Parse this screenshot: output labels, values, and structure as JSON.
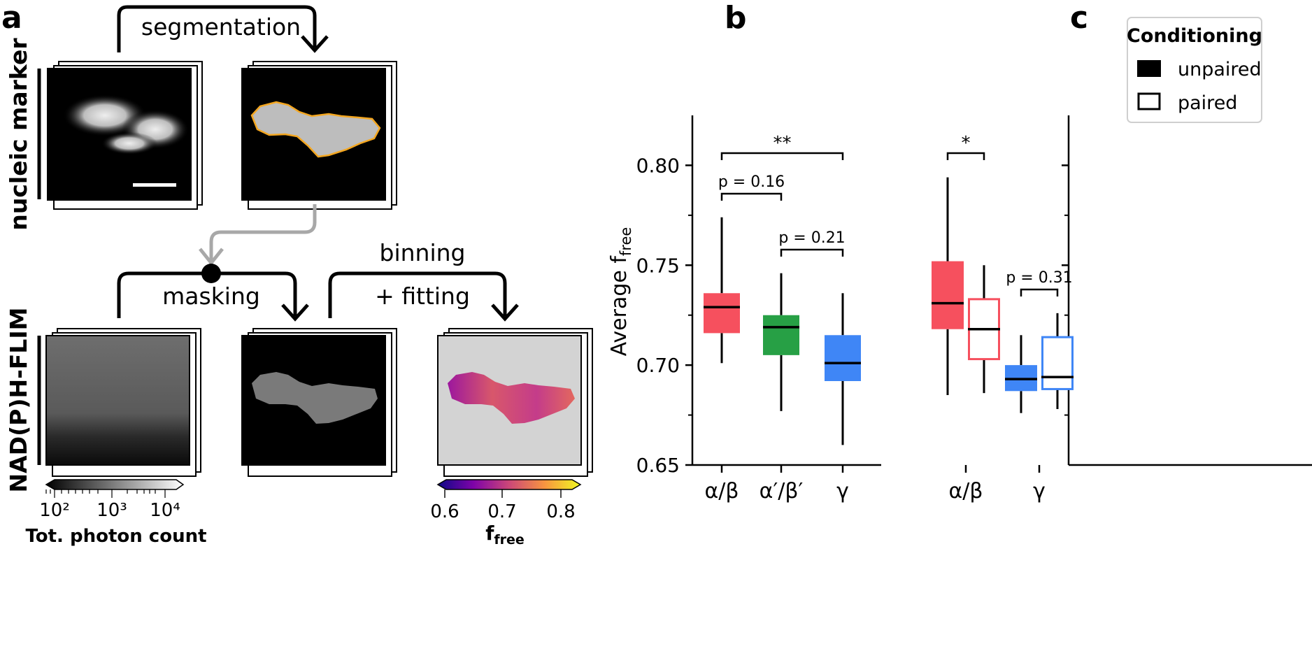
{
  "panels": {
    "a": "a",
    "b": "b",
    "c": "c"
  },
  "workflow": {
    "row_labels": {
      "top": "nucleic marker",
      "bottom": "NAD(P)H-FLIM"
    },
    "steps": {
      "segmentation": "segmentation",
      "masking": "masking",
      "binning": "binning",
      "fitting": "+ fitting"
    }
  },
  "colorbars": {
    "gray": {
      "ticks": [
        "10²",
        "10³",
        "10⁴"
      ],
      "label": "Tot. photon count"
    },
    "plasma": {
      "ticks": [
        "0.6",
        "0.7",
        "0.8"
      ],
      "label_main": "f",
      "label_sub": "free"
    }
  },
  "colors": {
    "ab": "#f6505e",
    "apbp": "#27a045",
    "g": "#3f86f6"
  },
  "chart_data": [
    {
      "type": "box",
      "panel": "b",
      "ylabel_main": "Average f",
      "ylabel_sub": "free",
      "ylim": [
        0.65,
        0.825
      ],
      "yticks": [
        "0.65",
        "0.70",
        "0.75",
        "0.80"
      ],
      "categories": [
        "α/β",
        "α′/β′",
        "γ"
      ],
      "boxes": [
        {
          "category": "α/β",
          "whislo": 0.701,
          "q1": 0.716,
          "median": 0.729,
          "q3": 0.736,
          "whishi": 0.774
        },
        {
          "category": "α′/β′",
          "whislo": 0.677,
          "q1": 0.705,
          "median": 0.719,
          "q3": 0.725,
          "whishi": 0.746
        },
        {
          "category": "γ",
          "whislo": 0.66,
          "q1": 0.692,
          "median": 0.701,
          "q3": 0.715,
          "whishi": 0.736
        }
      ],
      "annotations": [
        {
          "between": [
            "α/β",
            "γ"
          ],
          "label": "**"
        },
        {
          "between": [
            "α/β",
            "α′/β′"
          ],
          "label": "p = 0.16"
        },
        {
          "between": [
            "α′/β′",
            "γ"
          ],
          "label": "p = 0.21"
        }
      ]
    },
    {
      "type": "box",
      "panel": "c",
      "ylim": [
        0.65,
        0.825
      ],
      "categories": [
        "α/β",
        "γ"
      ],
      "legend": {
        "title": "Conditioning",
        "entries": [
          "unpaired",
          "paired"
        ],
        "position": "top-right"
      },
      "series": [
        {
          "name": "unpaired",
          "fill": "filled",
          "boxes": [
            {
              "category": "α/β",
              "whislo": 0.685,
              "q1": 0.718,
              "median": 0.731,
              "q3": 0.752,
              "whishi": 0.794
            },
            {
              "category": "γ",
              "whislo": 0.676,
              "q1": 0.687,
              "median": 0.693,
              "q3": 0.7,
              "whishi": 0.715
            }
          ]
        },
        {
          "name": "paired",
          "fill": "open",
          "boxes": [
            {
              "category": "α/β",
              "whislo": 0.686,
              "q1": 0.703,
              "median": 0.718,
              "q3": 0.733,
              "whishi": 0.75
            },
            {
              "category": "γ",
              "whislo": 0.678,
              "q1": 0.688,
              "median": 0.694,
              "q3": 0.714,
              "whishi": 0.726
            }
          ]
        }
      ],
      "annotations": [
        {
          "between": [
            "α/β unpaired",
            "α/β paired"
          ],
          "label": "*"
        },
        {
          "between": [
            "γ unpaired",
            "γ paired"
          ],
          "label": "p = 0.31"
        }
      ]
    }
  ]
}
